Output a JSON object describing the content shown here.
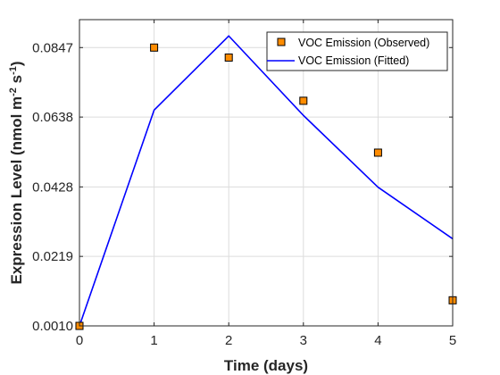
{
  "chart_data": {
    "type": "line",
    "xlabel": "Time (days)",
    "ylabel": "Expression Level (nmol m",
    "ylabel_sup1": "-2",
    "ylabel_mid": " s",
    "ylabel_sup2": "-1",
    "ylabel_end": ")",
    "x_ticks": [
      0,
      1,
      2,
      3,
      4,
      5
    ],
    "x_tick_labels": [
      "0",
      "1",
      "2",
      "3",
      "4",
      "5"
    ],
    "y_ticks": [
      0.001,
      0.0219,
      0.0428,
      0.0638,
      0.0847
    ],
    "y_tick_labels": [
      "0.0010",
      "0.0219",
      "0.0428",
      "0.0638",
      "0.0847"
    ],
    "xlim": [
      0,
      5
    ],
    "ylim": [
      0.001,
      0.0931
    ],
    "grid": true,
    "legend_position": "top-right",
    "series": [
      {
        "name": "VOC Emission (Observed)",
        "kind": "markers",
        "color": "#ff8c00",
        "x": [
          0,
          1,
          2,
          3,
          4,
          5
        ],
        "y": [
          0.001,
          0.0847,
          0.0817,
          0.0687,
          0.0531,
          0.0087
        ]
      },
      {
        "name": "VOC Emission (Fitted)",
        "kind": "line",
        "color": "#0000ff",
        "x": [
          0,
          1,
          2,
          3,
          4,
          5
        ],
        "y": [
          0.001,
          0.0659,
          0.0882,
          0.0643,
          0.0427,
          0.0272
        ]
      }
    ]
  }
}
